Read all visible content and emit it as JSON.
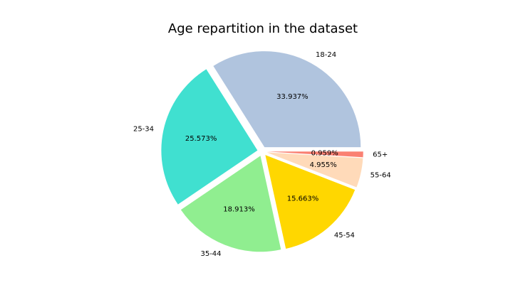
{
  "chart_data": {
    "type": "pie",
    "title": "Age repartition in the dataset",
    "start_angle_deg": 0,
    "direction": "counterclockwise",
    "slices": [
      {
        "label": "18-24",
        "value": 33.937,
        "pct_label": "33.937%",
        "color": "#B0C4DE"
      },
      {
        "label": "25-34",
        "value": 25.573,
        "pct_label": "25.573%",
        "color": "#40E0D0"
      },
      {
        "label": "35-44",
        "value": 18.913,
        "pct_label": "18.913%",
        "color": "#90EE90"
      },
      {
        "label": "45-54",
        "value": 15.663,
        "pct_label": "15.663%",
        "color": "#FFD700"
      },
      {
        "label": "55-64",
        "value": 4.955,
        "pct_label": "4.955%",
        "color": "#FFDAB9"
      },
      {
        "label": "65+",
        "value": 0.959,
        "pct_label": "0.959%",
        "color": "#FA8072"
      }
    ]
  }
}
